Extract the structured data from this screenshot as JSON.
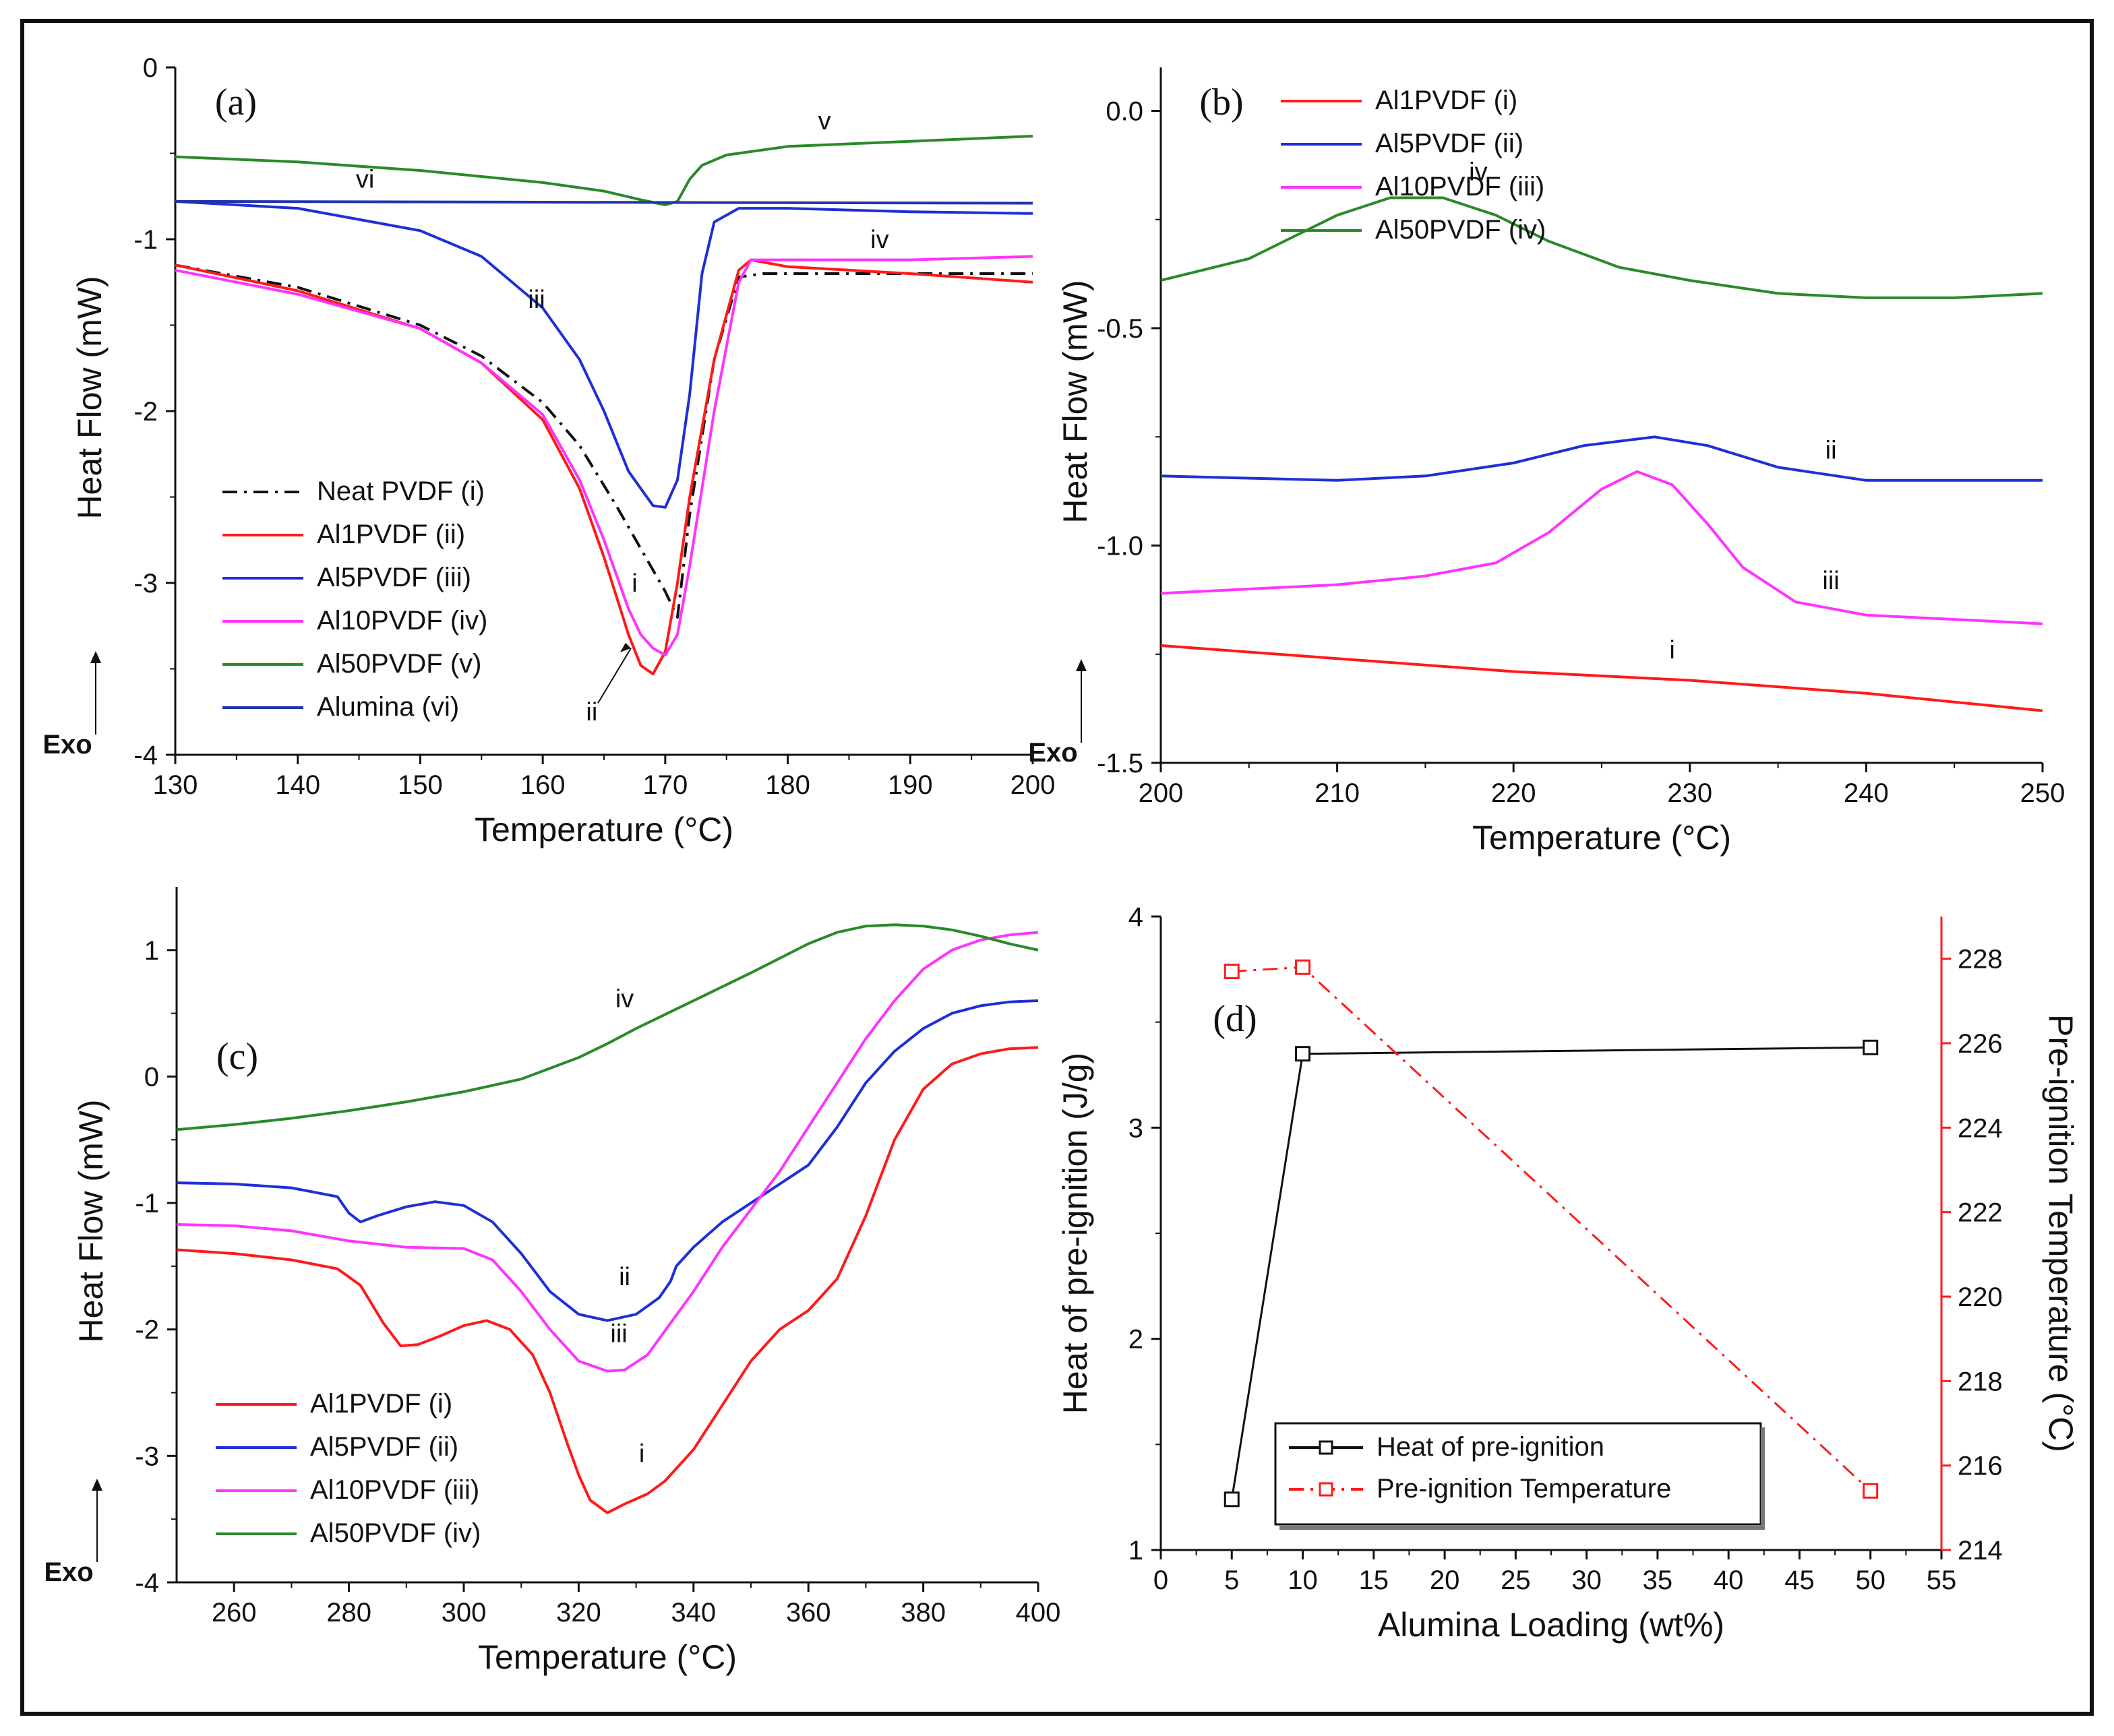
{
  "colors": {
    "red": "#ff1a1a",
    "blue": "#1f2fd6",
    "magenta": "#ff33ff",
    "green": "#2a8a2a",
    "navy": "#2233aa",
    "black": "#111111"
  },
  "chart_data": [
    {
      "id": "a",
      "type": "line",
      "panel_label": "(a)",
      "xlabel": "Temperature (°C)",
      "ylabel": "Heat Flow (mW)",
      "exo_label": "Exo",
      "xlim": [
        130,
        200
      ],
      "ylim": [
        -4,
        0
      ],
      "xticks": [
        "130",
        "140",
        "150",
        "160",
        "170",
        "180",
        "190",
        "200"
      ],
      "yticks": [
        "-4",
        "-3",
        "-2",
        "-1",
        "0"
      ],
      "series": [
        {
          "name": "Neat PVDF (i)",
          "color": "#111111",
          "dash": "dashdot",
          "x": [
            130,
            140,
            150,
            155,
            160,
            163,
            166,
            168,
            170,
            171,
            172,
            174,
            176,
            178,
            180,
            190,
            200
          ],
          "y": [
            -1.15,
            -1.28,
            -1.5,
            -1.68,
            -1.95,
            -2.2,
            -2.55,
            -2.8,
            -3.05,
            -3.2,
            -2.6,
            -1.7,
            -1.22,
            -1.2,
            -1.2,
            -1.2,
            -1.2
          ]
        },
        {
          "name": "Al1PVDF (ii)",
          "color": "#ff1a1a",
          "x": [
            130,
            140,
            150,
            155,
            160,
            163,
            165,
            167,
            168,
            169,
            170,
            171,
            172,
            174,
            176,
            177,
            180,
            190,
            200
          ],
          "y": [
            -1.15,
            -1.3,
            -1.52,
            -1.72,
            -2.05,
            -2.45,
            -2.85,
            -3.3,
            -3.48,
            -3.53,
            -3.4,
            -3.0,
            -2.5,
            -1.7,
            -1.18,
            -1.12,
            -1.16,
            -1.2,
            -1.25
          ]
        },
        {
          "name": "Al5PVDF (iii)",
          "color": "#1f2fd6",
          "x": [
            130,
            140,
            150,
            155,
            160,
            163,
            165,
            167,
            169,
            170,
            171,
            172,
            173,
            174,
            176,
            180,
            190,
            200
          ],
          "y": [
            -0.78,
            -0.82,
            -0.95,
            -1.1,
            -1.4,
            -1.7,
            -2.0,
            -2.35,
            -2.55,
            -2.56,
            -2.4,
            -1.9,
            -1.2,
            -0.9,
            -0.82,
            -0.82,
            -0.84,
            -0.85
          ]
        },
        {
          "name": "Al10PVDF (iv)",
          "color": "#ff33ff",
          "x": [
            130,
            140,
            150,
            155,
            160,
            163,
            165,
            167,
            168,
            169,
            170,
            171,
            172,
            174,
            176,
            177,
            180,
            190,
            200
          ],
          "y": [
            -1.18,
            -1.32,
            -1.52,
            -1.72,
            -2.02,
            -2.4,
            -2.75,
            -3.15,
            -3.3,
            -3.38,
            -3.42,
            -3.3,
            -2.9,
            -2.0,
            -1.25,
            -1.12,
            -1.12,
            -1.12,
            -1.1
          ]
        },
        {
          "name": "Al50PVDF (v)",
          "color": "#2a8a2a",
          "x": [
            130,
            140,
            150,
            160,
            165,
            168,
            170,
            171,
            172,
            173,
            175,
            180,
            190,
            200
          ],
          "y": [
            -0.52,
            -0.55,
            -0.6,
            -0.67,
            -0.72,
            -0.77,
            -0.8,
            -0.78,
            -0.65,
            -0.57,
            -0.51,
            -0.46,
            -0.43,
            -0.4
          ]
        },
        {
          "name": "Alumina (vi)",
          "color": "#2233aa",
          "x": [
            130,
            200
          ],
          "y": [
            -0.78,
            -0.79
          ]
        }
      ],
      "annotations": [
        {
          "text": "v",
          "x": 183,
          "y": -0.36
        },
        {
          "text": "vi",
          "x": 145.5,
          "y": -0.7
        },
        {
          "text": "iii",
          "x": 159.5,
          "y": -1.4
        },
        {
          "text": "iv",
          "x": 187.5,
          "y": -1.05
        },
        {
          "text": "i",
          "x": 167.5,
          "y": -3.05
        },
        {
          "text": "ii",
          "x": 164,
          "y": -3.8
        }
      ],
      "legend_position": "bottom-left"
    },
    {
      "id": "b",
      "type": "line",
      "panel_label": "(b)",
      "xlabel": "Temperature (°C)",
      "ylabel": "Heat Flow (mW)",
      "exo_label": "Exo",
      "xlim": [
        200,
        250
      ],
      "ylim": [
        -1.5,
        0.1
      ],
      "xticks": [
        "200",
        "210",
        "220",
        "230",
        "240",
        "250"
      ],
      "yticks": [
        "-1.5",
        "-1.0",
        "-0.5",
        "0.0"
      ],
      "series": [
        {
          "name": "Al1PVDF (i)",
          "color": "#ff1a1a",
          "x": [
            200,
            210,
            220,
            230,
            240,
            250
          ],
          "y": [
            -1.23,
            -1.26,
            -1.29,
            -1.31,
            -1.34,
            -1.38
          ]
        },
        {
          "name": "Al5PVDF (ii)",
          "color": "#1f2fd6",
          "x": [
            200,
            210,
            215,
            220,
            224,
            228,
            231,
            235,
            240,
            245,
            250
          ],
          "y": [
            -0.84,
            -0.85,
            -0.84,
            -0.81,
            -0.77,
            -0.75,
            -0.77,
            -0.82,
            -0.85,
            -0.85,
            -0.85
          ]
        },
        {
          "name": "Al10PVDF (iii)",
          "color": "#ff33ff",
          "x": [
            200,
            205,
            210,
            215,
            219,
            222,
            225,
            227,
            229,
            231,
            233,
            236,
            240,
            245,
            250
          ],
          "y": [
            -1.11,
            -1.1,
            -1.09,
            -1.07,
            -1.04,
            -0.97,
            -0.87,
            -0.83,
            -0.86,
            -0.95,
            -1.05,
            -1.13,
            -1.16,
            -1.17,
            -1.18
          ]
        },
        {
          "name": "Al50PVDF (iv)",
          "color": "#2a8a2a",
          "x": [
            200,
            205,
            210,
            213,
            216,
            219,
            222,
            226,
            230,
            235,
            240,
            245,
            250
          ],
          "y": [
            -0.39,
            -0.34,
            -0.24,
            -0.2,
            -0.2,
            -0.24,
            -0.3,
            -0.36,
            -0.39,
            -0.42,
            -0.43,
            -0.43,
            -0.42
          ]
        }
      ],
      "annotations": [
        {
          "text": "iv",
          "x": 218,
          "y": -0.16
        },
        {
          "text": "ii",
          "x": 238,
          "y": -0.8
        },
        {
          "text": "iii",
          "x": 238,
          "y": -1.1
        },
        {
          "text": "i",
          "x": 229,
          "y": -1.26
        }
      ],
      "legend_position": "top-right"
    },
    {
      "id": "c",
      "type": "line",
      "panel_label": "(c)",
      "xlabel": "Temperature (°C)",
      "ylabel": "Heat Flow (mW)",
      "exo_label": "Exo",
      "xlim": [
        250,
        400
      ],
      "ylim": [
        -4,
        1.5
      ],
      "xticks": [
        "260",
        "280",
        "300",
        "320",
        "340",
        "360",
        "380",
        "400"
      ],
      "yticks": [
        "-4",
        "-3",
        "-2",
        "-1",
        "0",
        "1"
      ],
      "series": [
        {
          "name": "Al1PVDF (i)",
          "color": "#ff1a1a",
          "x": [
            250,
            260,
            270,
            278,
            282,
            286,
            289,
            292,
            296,
            300,
            304,
            308,
            312,
            315,
            318,
            320,
            322,
            325,
            328,
            332,
            335,
            340,
            345,
            350,
            355,
            360,
            365,
            370,
            375,
            380,
            385,
            390,
            395,
            400
          ],
          "y": [
            -1.37,
            -1.4,
            -1.45,
            -1.52,
            -1.65,
            -1.95,
            -2.13,
            -2.12,
            -2.05,
            -1.97,
            -1.93,
            -2.0,
            -2.2,
            -2.5,
            -2.9,
            -3.15,
            -3.35,
            -3.45,
            -3.38,
            -3.3,
            -3.2,
            -2.95,
            -2.6,
            -2.25,
            -2.0,
            -1.85,
            -1.6,
            -1.1,
            -0.5,
            -0.1,
            0.1,
            0.18,
            0.22,
            0.23
          ]
        },
        {
          "name": "Al5PVDF (ii)",
          "color": "#1f2fd6",
          "x": [
            250,
            260,
            270,
            278,
            280,
            282,
            285,
            290,
            295,
            300,
            305,
            310,
            315,
            320,
            325,
            330,
            334,
            336,
            337,
            340,
            345,
            350,
            355,
            360,
            365,
            370,
            375,
            380,
            385,
            390,
            395,
            400
          ],
          "y": [
            -0.84,
            -0.85,
            -0.88,
            -0.95,
            -1.08,
            -1.15,
            -1.1,
            -1.03,
            -0.99,
            -1.02,
            -1.15,
            -1.4,
            -1.7,
            -1.88,
            -1.93,
            -1.88,
            -1.75,
            -1.62,
            -1.5,
            -1.35,
            -1.15,
            -1.0,
            -0.85,
            -0.7,
            -0.4,
            -0.05,
            0.2,
            0.38,
            0.5,
            0.56,
            0.59,
            0.6
          ]
        },
        {
          "name": "Al10PVDF (iii)",
          "color": "#ff33ff",
          "x": [
            250,
            260,
            270,
            280,
            290,
            300,
            305,
            310,
            315,
            320,
            325,
            328,
            332,
            336,
            340,
            345,
            350,
            355,
            360,
            365,
            370,
            375,
            380,
            385,
            390,
            395,
            400
          ],
          "y": [
            -1.17,
            -1.18,
            -1.22,
            -1.3,
            -1.35,
            -1.36,
            -1.45,
            -1.7,
            -2.0,
            -2.25,
            -2.33,
            -2.32,
            -2.2,
            -1.95,
            -1.7,
            -1.35,
            -1.05,
            -0.75,
            -0.4,
            -0.05,
            0.3,
            0.6,
            0.85,
            1.0,
            1.08,
            1.12,
            1.14
          ]
        },
        {
          "name": "Al50PVDF (iv)",
          "color": "#2a8a2a",
          "x": [
            250,
            260,
            270,
            280,
            290,
            300,
            310,
            320,
            325,
            330,
            340,
            350,
            360,
            365,
            370,
            375,
            380,
            385,
            390,
            395,
            400
          ],
          "y": [
            -0.42,
            -0.38,
            -0.33,
            -0.27,
            -0.2,
            -0.12,
            -0.02,
            0.15,
            0.26,
            0.38,
            0.6,
            0.82,
            1.05,
            1.14,
            1.19,
            1.2,
            1.19,
            1.16,
            1.11,
            1.05,
            1.0
          ]
        }
      ],
      "annotations": [
        {
          "text": "iv",
          "x": 328,
          "y": 0.55
        },
        {
          "text": "ii",
          "x": 328,
          "y": -1.65
        },
        {
          "text": "iii",
          "x": 327,
          "y": -2.1
        },
        {
          "text": "i",
          "x": 331,
          "y": -3.05
        }
      ],
      "legend_position": "bottom-left"
    },
    {
      "id": "d",
      "type": "line",
      "panel_label": "(d)",
      "xlabel": "Alumina Loading (wt%)",
      "ylabel": "Heat of pre-ignition (J/g)",
      "y2label": "Pre-ignition Temperature (°C)",
      "xlim": [
        0,
        55
      ],
      "ylim": [
        1,
        4
      ],
      "y2lim": [
        214,
        229
      ],
      "xticks": [
        "0",
        "5",
        "10",
        "15",
        "20",
        "25",
        "30",
        "35",
        "40",
        "45",
        "50",
        "55"
      ],
      "yticks": [
        "1",
        "2",
        "3",
        "4"
      ],
      "y2ticks": [
        "214",
        "216",
        "218",
        "220",
        "222",
        "224",
        "226",
        "228"
      ],
      "series": [
        {
          "name": "Heat of pre-ignition",
          "color": "#111111",
          "axis": "left",
          "x": [
            5,
            10,
            50
          ],
          "y": [
            1.24,
            3.35,
            3.38
          ]
        },
        {
          "name": "Pre-ignition Temperature",
          "color": "#ff1a1a",
          "axis": "right",
          "dash": "dashdot",
          "x": [
            5,
            10,
            50
          ],
          "y": [
            227.7,
            227.8,
            215.4
          ]
        }
      ],
      "legend_position": "bottom-center"
    }
  ]
}
